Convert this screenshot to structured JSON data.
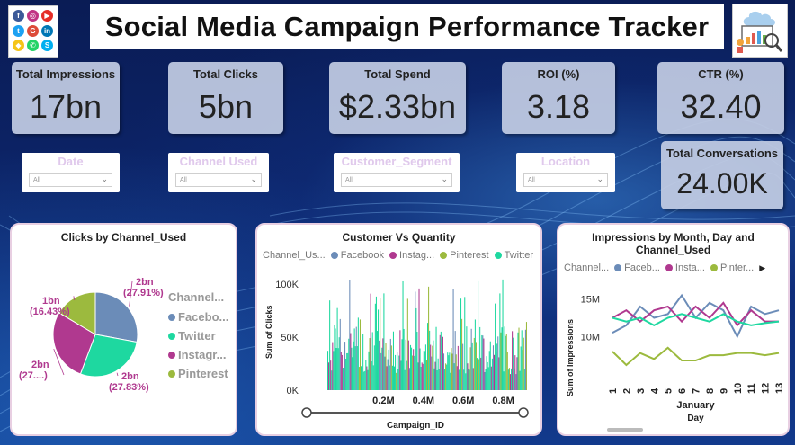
{
  "header": {
    "title": "Social Media Campaign Performance Tracker"
  },
  "logo_icons": [
    {
      "name": "facebook-icon",
      "letter": "f",
      "color": "#3b5998"
    },
    {
      "name": "instagram-icon",
      "letter": "◎",
      "color": "#c13584"
    },
    {
      "name": "youtube-icon",
      "letter": "▶",
      "color": "#e52d27"
    },
    {
      "name": "twitter-icon",
      "letter": "t",
      "color": "#1da1f2"
    },
    {
      "name": "googleplus-icon",
      "letter": "G",
      "color": "#dd4b39"
    },
    {
      "name": "linkedin-icon",
      "letter": "in",
      "color": "#0077b5"
    },
    {
      "name": "snapchat-icon",
      "letter": "◆",
      "color": "#f5c518"
    },
    {
      "name": "whatsapp-icon",
      "letter": "✆",
      "color": "#25d366"
    },
    {
      "name": "skype-icon",
      "letter": "S",
      "color": "#00aff0"
    }
  ],
  "kpis": {
    "impressions": {
      "label": "Total Impressions",
      "value": "17bn"
    },
    "clicks": {
      "label": "Total Clicks",
      "value": "5bn"
    },
    "spend": {
      "label": "Total Spend",
      "value": "$2.33bn"
    },
    "roi": {
      "label": "ROI (%)",
      "value": "3.18"
    },
    "ctr": {
      "label": "CTR (%)",
      "value": "32.40"
    },
    "conversations": {
      "label": "Total Conversations",
      "value": "24.00K"
    }
  },
  "slicers": {
    "date": {
      "title": "Date",
      "value": "All"
    },
    "channel": {
      "title": "Channel Used",
      "value": "All"
    },
    "segment": {
      "title": "Customer_Segment",
      "value": "All"
    },
    "location": {
      "title": "Location",
      "value": "All"
    }
  },
  "colors": {
    "facebook": "#6b8cb8",
    "twitter": "#1ed8a0",
    "instagram": "#b0398f",
    "pinterest": "#9cba3e"
  },
  "chart_data": [
    {
      "type": "pie",
      "title": "Clicks by Channel_Used",
      "legend_title": "Channel...",
      "legend_placement": "right",
      "slices": [
        {
          "name": "Facebo...",
          "value": 27.91,
          "label": "2bn",
          "pct": "(27.91%)"
        },
        {
          "name": "Twitter",
          "value": 27.83,
          "label": "2bn",
          "pct": "(27.83%)"
        },
        {
          "name": "Instagr...",
          "value": 27.83,
          "label": "2bn",
          "pct": "(27....)"
        },
        {
          "name": "Pinterest",
          "value": 16.43,
          "label": "1bn",
          "pct": "(16.43%)"
        }
      ]
    },
    {
      "type": "bar",
      "title": "Customer Vs Quantity",
      "legend_title": "Channel_Us...",
      "legend": [
        "Facebook",
        "Instag...",
        "Pinterest",
        "Twitter"
      ],
      "xlabel": "Campaign_ID",
      "ylabel": "Sum of Clicks",
      "x_ticks": [
        "0.2M",
        "0.4M",
        "0.6M",
        "0.8M"
      ],
      "y_ticks": [
        "100K",
        "50K",
        "0K"
      ],
      "ylim": [
        0,
        110000
      ],
      "xlim": [
        0,
        1000000
      ]
    },
    {
      "type": "line",
      "title": "Impressions by Month, Day and Channel_Used",
      "legend_title": "Channel...",
      "legend": [
        "Faceb...",
        "Insta...",
        "Pinter..."
      ],
      "xlabel": "Day",
      "x_group": "January",
      "ylabel": "Sum of Impressions",
      "y_ticks": [
        "15M",
        "10M"
      ],
      "x": [
        1,
        2,
        3,
        4,
        5,
        6,
        7,
        8,
        9,
        10,
        11,
        12,
        13
      ],
      "ylim": [
        5000000,
        17000000
      ],
      "series": [
        {
          "name": "Faceb...",
          "color": "#6b8cb8",
          "values": [
            10.5,
            11.5,
            14,
            12.5,
            13,
            15.5,
            12.5,
            14.5,
            13.5,
            10,
            14,
            13,
            13.5
          ]
        },
        {
          "name": "Insta...",
          "color": "#b0398f",
          "values": [
            12.5,
            13.5,
            12,
            13.5,
            14,
            12,
            14,
            12.5,
            14.5,
            11.5,
            13.5,
            12,
            12
          ]
        },
        {
          "name": "Pinter...",
          "color": "#9cba3e",
          "values": [
            8,
            6.2,
            7.8,
            7,
            8.5,
            6.8,
            6.8,
            7.5,
            7.5,
            7.8,
            7.8,
            7.5,
            7.8
          ]
        },
        {
          "name": "Twitter",
          "color": "#1ed8a0",
          "values": [
            12.5,
            12,
            12.5,
            11.5,
            12.5,
            13,
            12.5,
            12,
            13,
            12,
            11.5,
            11.8,
            12
          ]
        }
      ]
    }
  ]
}
